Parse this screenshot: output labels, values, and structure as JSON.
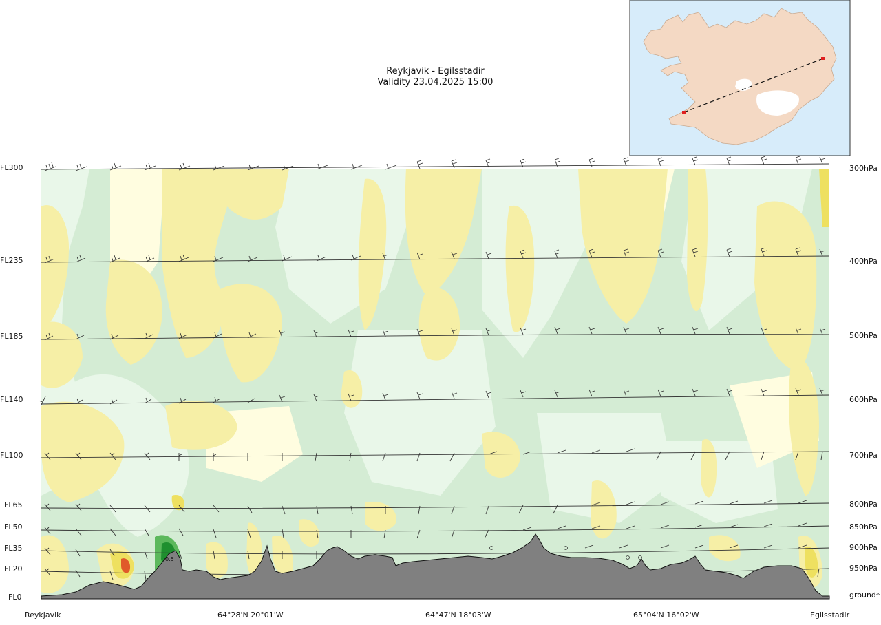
{
  "header": {
    "route": "Reykjavik - Egilsstadir",
    "validity": "Validity 23.04.2025 15:00"
  },
  "chart_data": {
    "type": "cross-section",
    "title": "Reykjavik - Egilsstadir",
    "subtitle": "Validity 23.04.2025 15:00",
    "y_levels_left": [
      "FL300",
      "FL235",
      "FL185",
      "FL140",
      "FL100",
      "FL65",
      "FL50",
      "FL35",
      "FL20",
      "FL0"
    ],
    "y_levels_right": [
      "300hPa",
      "400hPa",
      "500hPa",
      "600hPa",
      "700hPa",
      "800hPa",
      "850hPa",
      "900hPa",
      "950hPa",
      "ground*"
    ],
    "x_labels": [
      "Reykjavik",
      "64°28'N 20°01'W",
      "64°47'N 18°03'W",
      "65°04'N 16°02'W",
      "Egilsstadir"
    ],
    "contour_label": "0.5",
    "colors": {
      "terrain": "#808080",
      "sea": "#d7ecfa",
      "land": "#f4d9c4",
      "route": "#111111",
      "endpoints": "#e02020",
      "light_green": "#d4ecd4",
      "pale_green": "#e9f7e9",
      "pale_yellow": "#fffde0",
      "yellow": "#f6efa6",
      "strong_yellow": "#eee060",
      "green": "#5cb85c",
      "dark_green": "#1f8f2f",
      "red": "#e05a2a"
    }
  }
}
